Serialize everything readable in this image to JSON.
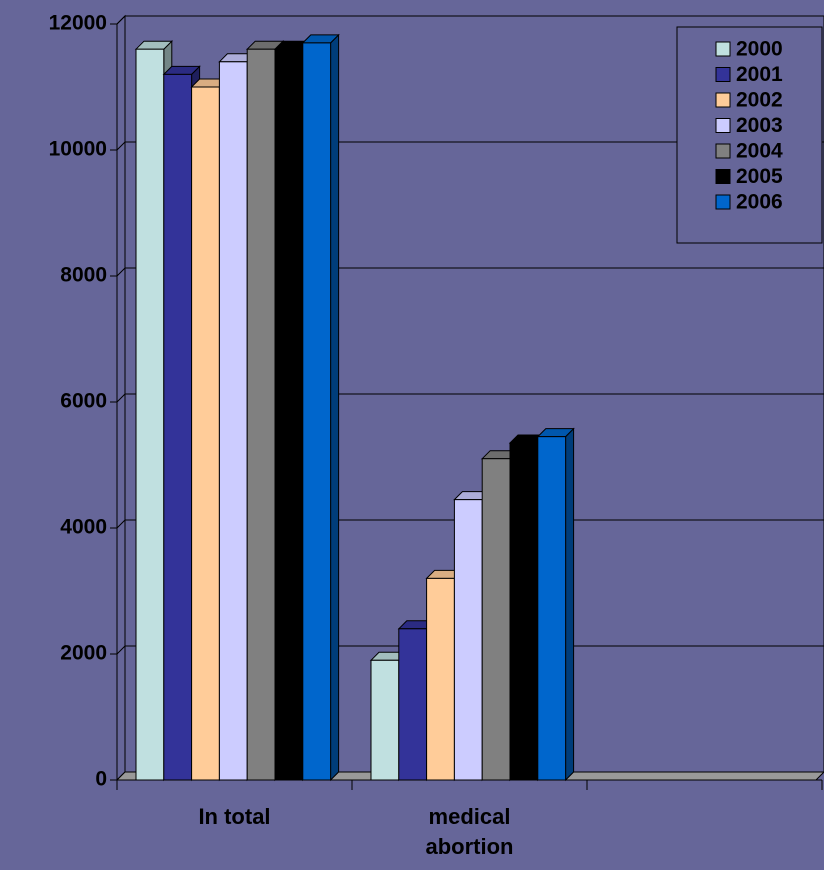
{
  "chart_data": {
    "type": "bar3d",
    "categories": [
      "In total",
      "medical abortion",
      null
    ],
    "series": [
      {
        "name": "2000",
        "color": "#c0e0e0",
        "values": [
          11600,
          1900,
          null
        ]
      },
      {
        "name": "2001",
        "color": "#333399",
        "values": [
          11200,
          2400,
          null
        ]
      },
      {
        "name": "2002",
        "color": "#ffcc99",
        "values": [
          11000,
          3200,
          null
        ]
      },
      {
        "name": "2003",
        "color": "#ccccff",
        "values": [
          11400,
          4450,
          null
        ]
      },
      {
        "name": "2004",
        "color": "#808080",
        "values": [
          11600,
          5100,
          null
        ]
      },
      {
        "name": "2005",
        "color": "#000000",
        "values": [
          11600,
          5350,
          null
        ]
      },
      {
        "name": "2006",
        "color": "#0066cc",
        "values": [
          11700,
          5450,
          null
        ]
      }
    ],
    "ylim": [
      0,
      12000
    ],
    "yticks": [
      0,
      2000,
      4000,
      6000,
      8000,
      10000,
      12000
    ],
    "grid": true,
    "legend": "top-right"
  }
}
